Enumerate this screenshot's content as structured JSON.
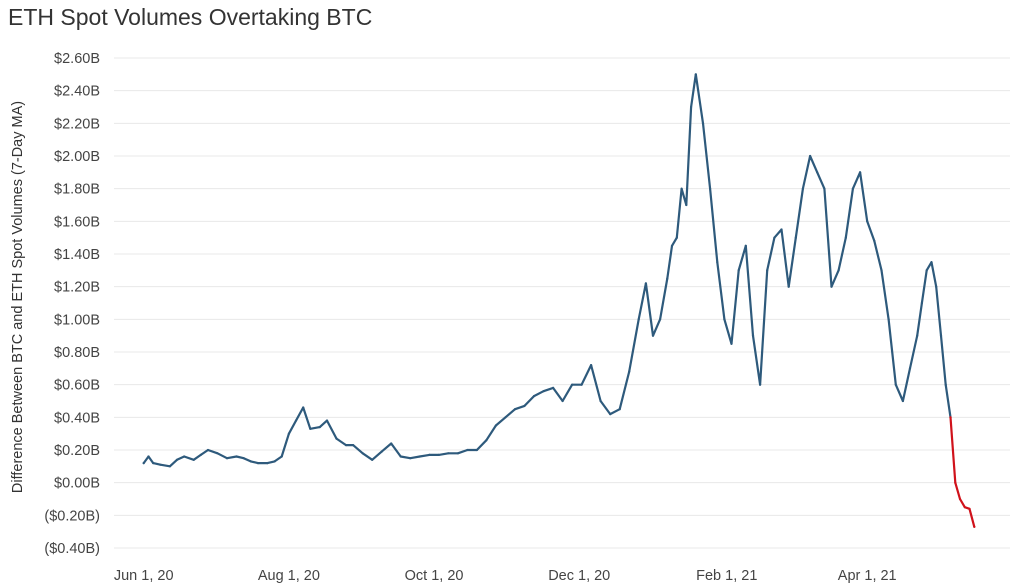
{
  "chart_data": {
    "type": "line",
    "title": "ETH Spot Volumes Overtaking BTC",
    "ylabel": "Difference Between BTC and ETH Spot Volumes (7-Day MA)",
    "xlabel": "",
    "y_ticks": [
      {
        "value": 2.6,
        "label": "$2.60B"
      },
      {
        "value": 2.4,
        "label": "$2.40B"
      },
      {
        "value": 2.2,
        "label": "$2.20B"
      },
      {
        "value": 2.0,
        "label": "$2.00B"
      },
      {
        "value": 1.8,
        "label": "$1.80B"
      },
      {
        "value": 1.6,
        "label": "$1.60B"
      },
      {
        "value": 1.4,
        "label": "$1.40B"
      },
      {
        "value": 1.2,
        "label": "$1.20B"
      },
      {
        "value": 1.0,
        "label": "$1.00B"
      },
      {
        "value": 0.8,
        "label": "$0.80B"
      },
      {
        "value": 0.6,
        "label": "$0.60B"
      },
      {
        "value": 0.4,
        "label": "$0.40B"
      },
      {
        "value": 0.2,
        "label": "$0.20B"
      },
      {
        "value": 0.0,
        "label": "$0.00B"
      },
      {
        "value": -0.2,
        "label": "($0.20B)"
      },
      {
        "value": -0.4,
        "label": "($0.40B)"
      }
    ],
    "x_ticks": [
      {
        "value": "2020-06-01",
        "label": "Jun 1, 20"
      },
      {
        "value": "2020-08-01",
        "label": "Aug 1, 20"
      },
      {
        "value": "2020-10-01",
        "label": "Oct 1, 20"
      },
      {
        "value": "2020-12-01",
        "label": "Dec 1, 20"
      },
      {
        "value": "2021-02-01",
        "label": "Feb 1, 21"
      },
      {
        "value": "2021-04-01",
        "label": "Apr 1, 21"
      }
    ],
    "ylim": [
      -0.4,
      2.6
    ],
    "xlim": [
      "2020-05-17",
      "2021-05-31"
    ],
    "y_unit": "$B",
    "grid": "horizontal",
    "colors": {
      "positive": "#2e5a7c",
      "negative": "#d0121b",
      "grid": "#e8e8e8"
    },
    "series": [
      {
        "x": [
          "2020-06-01",
          "2020-06-03",
          "2020-06-05",
          "2020-06-08",
          "2020-06-12",
          "2020-06-15",
          "2020-06-18",
          "2020-06-22",
          "2020-06-25",
          "2020-06-28",
          "2020-07-02",
          "2020-07-06",
          "2020-07-10",
          "2020-07-13",
          "2020-07-16",
          "2020-07-19",
          "2020-07-23",
          "2020-07-26",
          "2020-07-29",
          "2020-08-01",
          "2020-08-04",
          "2020-08-07",
          "2020-08-10",
          "2020-08-14",
          "2020-08-17",
          "2020-08-21",
          "2020-08-25",
          "2020-08-28",
          "2020-09-01",
          "2020-09-05",
          "2020-09-09",
          "2020-09-13",
          "2020-09-17",
          "2020-09-21",
          "2020-09-25",
          "2020-09-29",
          "2020-10-03",
          "2020-10-07",
          "2020-10-11",
          "2020-10-15",
          "2020-10-19",
          "2020-10-23",
          "2020-10-27",
          "2020-10-31",
          "2020-11-04",
          "2020-11-08",
          "2020-11-12",
          "2020-11-16",
          "2020-11-20",
          "2020-11-24",
          "2020-11-28",
          "2020-12-02",
          "2020-12-06",
          "2020-12-10",
          "2020-12-14",
          "2020-12-18",
          "2020-12-22",
          "2020-12-26",
          "2020-12-29",
          "2021-01-01",
          "2021-01-04",
          "2021-01-07",
          "2021-01-09",
          "2021-01-11",
          "2021-01-13",
          "2021-01-15",
          "2021-01-17",
          "2021-01-19",
          "2021-01-22",
          "2021-01-25",
          "2021-01-28",
          "2021-01-31",
          "2021-02-03",
          "2021-02-06",
          "2021-02-09",
          "2021-02-12",
          "2021-02-15",
          "2021-02-18",
          "2021-02-21",
          "2021-02-24",
          "2021-02-27",
          "2021-03-02",
          "2021-03-05",
          "2021-03-08",
          "2021-03-11",
          "2021-03-14",
          "2021-03-17",
          "2021-03-20",
          "2021-03-23",
          "2021-03-26",
          "2021-03-29",
          "2021-04-01",
          "2021-04-04",
          "2021-04-07",
          "2021-04-10",
          "2021-04-13",
          "2021-04-16",
          "2021-04-19",
          "2021-04-22",
          "2021-04-24",
          "2021-04-26",
          "2021-04-28",
          "2021-04-30",
          "2021-05-02",
          "2021-05-04",
          "2021-05-06"
        ],
        "values": [
          0.12,
          0.16,
          0.12,
          0.11,
          0.1,
          0.14,
          0.16,
          0.14,
          0.17,
          0.2,
          0.18,
          0.15,
          0.16,
          0.15,
          0.13,
          0.12,
          0.12,
          0.13,
          0.16,
          0.3,
          0.38,
          0.46,
          0.33,
          0.34,
          0.38,
          0.27,
          0.23,
          0.23,
          0.18,
          0.14,
          0.19,
          0.24,
          0.16,
          0.15,
          0.16,
          0.17,
          0.17,
          0.18,
          0.18,
          0.2,
          0.2,
          0.26,
          0.35,
          0.4,
          0.45,
          0.47,
          0.53,
          0.56,
          0.58,
          0.5,
          0.6,
          0.6,
          0.72,
          0.5,
          0.42,
          0.45,
          0.68,
          1.0,
          1.22,
          0.9,
          1.0,
          1.25,
          1.45,
          1.5,
          1.8,
          1.7,
          2.3,
          2.5,
          2.2,
          1.8,
          1.35,
          1.0,
          0.85,
          1.3,
          1.45,
          0.9,
          0.6,
          1.3,
          1.5,
          1.55,
          1.2,
          1.5,
          1.8,
          2.0,
          1.9,
          1.8,
          1.2,
          1.3,
          1.5,
          1.8,
          1.9,
          1.6,
          1.48,
          1.3,
          1.0,
          0.6,
          0.5,
          0.7,
          0.9,
          1.1,
          1.3,
          1.35,
          1.2,
          0.9,
          0.6,
          0.4
        ],
        "color": "#2e5a7c"
      },
      {
        "x": [
          "2021-05-06",
          "2021-05-08",
          "2021-05-10",
          "2021-05-12",
          "2021-05-14",
          "2021-05-16"
        ],
        "values": [
          0.4,
          0.0,
          -0.1,
          -0.15,
          -0.16,
          -0.27
        ],
        "color": "#d0121b"
      }
    ]
  }
}
